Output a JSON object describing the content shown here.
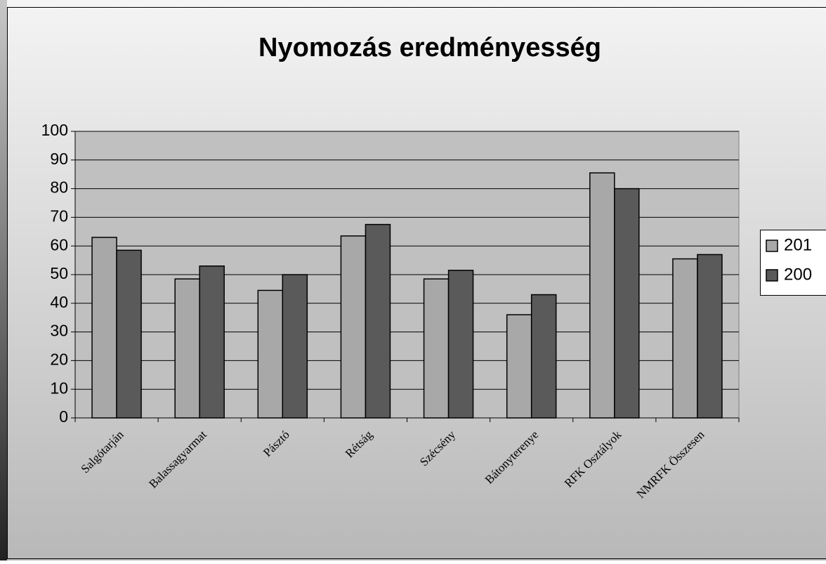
{
  "chart_data": {
    "type": "bar",
    "title": "Nyomozás eredményesség",
    "categories": [
      "Salgótarján",
      "Balassagyarmat",
      "Pásztó",
      "Rétság",
      "Szécsény",
      "Bátonyterenye",
      "RFK Osztályok",
      "NMRFK Összesen"
    ],
    "series": [
      {
        "name": "201",
        "color": "#a8a8a8",
        "values": [
          63,
          48.5,
          44.5,
          63.5,
          48.5,
          36,
          85.5,
          55.5
        ]
      },
      {
        "name": "200",
        "color": "#5a5a5a",
        "values": [
          58.5,
          53,
          50,
          67.5,
          51.5,
          43,
          80,
          57
        ]
      }
    ],
    "ylim": [
      0,
      100
    ],
    "yticks": [
      0,
      10,
      20,
      30,
      40,
      50,
      60,
      70,
      80,
      90,
      100
    ],
    "grid": true,
    "legend": "right"
  }
}
